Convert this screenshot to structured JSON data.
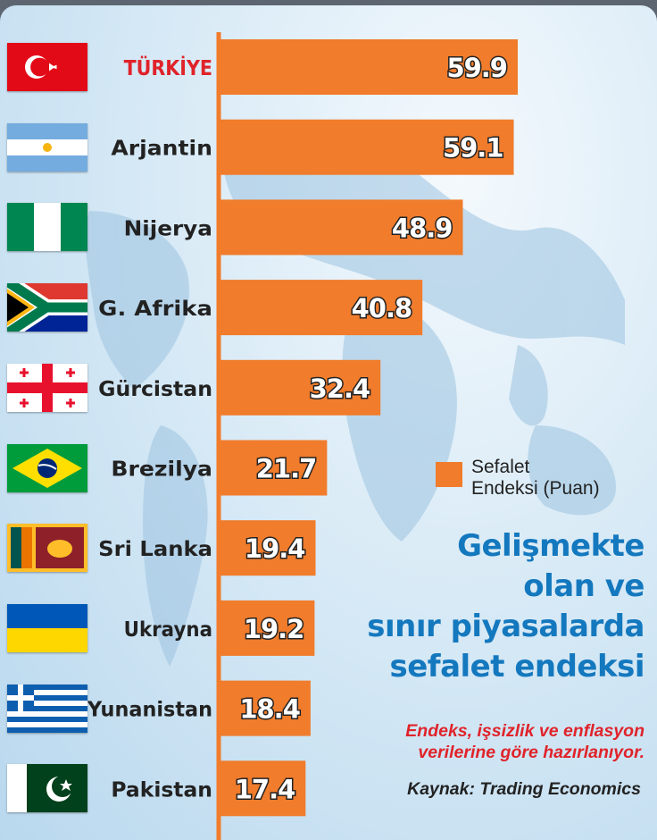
{
  "chart_data": {
    "type": "bar",
    "orientation": "horizontal",
    "categories": [
      "TÜRKİYE",
      "Arjantin",
      "Nijerya",
      "G. Afrika",
      "Gürcistan",
      "Brezilya",
      "Sri Lanka",
      "Ukrayna",
      "Yunanistan",
      "Pakistan"
    ],
    "values": [
      59.9,
      59.1,
      48.9,
      40.8,
      32.4,
      21.7,
      19.4,
      19.2,
      18.4,
      17.4
    ],
    "flags": [
      "turkey-flag",
      "argentina-flag",
      "nigeria-flag",
      "south-africa-flag",
      "georgia-flag",
      "brazil-flag",
      "sri-lanka-flag",
      "ukraine-flag",
      "greece-flag",
      "pakistan-flag"
    ],
    "series": [
      {
        "name": "Sefalet Endeksi (Puan)",
        "values": [
          59.9,
          59.1,
          48.9,
          40.8,
          32.4,
          21.7,
          19.4,
          19.2,
          18.4,
          17.4
        ]
      }
    ],
    "legend": [
      "Sefalet",
      "Endeksi (Puan)"
    ],
    "legend_position": "right",
    "title": [
      "Gelişmekte",
      "olan ve",
      "sınır piyasalarda",
      "sefalet endeksi"
    ],
    "subtitle": [
      "Endeks, işsizlik ve enflasyon",
      "verilerine göre hazırlanıyor."
    ],
    "source": "Kaynak: Trading Economics",
    "xlim": [
      0,
      80
    ],
    "grid": false,
    "highlight_category": "TÜRKİYE",
    "colors": {
      "bar": "#f07c2c",
      "highlight_label": "#e0232a",
      "label": "#222222",
      "title": "#1478be",
      "value_text": "#ffffff"
    }
  }
}
